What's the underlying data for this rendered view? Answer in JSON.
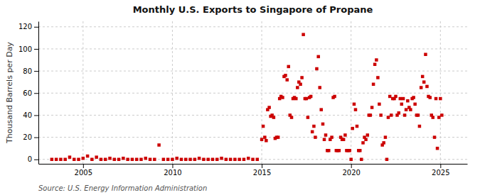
{
  "chart_data": {
    "type": "scatter",
    "title": "Monthly U.S. Exports to Singapore of Propane",
    "ylabel": "Thousand Barrels per Day",
    "source": "Source: U.S. Energy Information Administration",
    "color": "#cc0000",
    "marker": "square",
    "grid": true,
    "xlim": [
      2002.5,
      2026.5
    ],
    "ylim": [
      -4,
      125
    ],
    "xticks": [
      2005,
      2010,
      2015,
      2020,
      2025
    ],
    "yticks": [
      0,
      20,
      40,
      60,
      80,
      100,
      120
    ],
    "x": [
      2003.25,
      2003.5,
      2003.75,
      2004.0,
      2004.25,
      2004.5,
      2004.75,
      2005.0,
      2005.25,
      2005.5,
      2005.75,
      2006.0,
      2006.25,
      2006.5,
      2006.75,
      2007.0,
      2007.25,
      2007.5,
      2007.75,
      2008.0,
      2008.25,
      2008.5,
      2008.75,
      2009.0,
      2009.25,
      2009.5,
      2009.75,
      2010.0,
      2010.25,
      2010.5,
      2010.75,
      2011.0,
      2011.25,
      2011.5,
      2011.75,
      2012.0,
      2012.25,
      2012.5,
      2012.75,
      2013.0,
      2013.25,
      2013.5,
      2013.75,
      2014.0,
      2014.25,
      2014.5,
      2014.75,
      2015.0,
      2015.08,
      2015.17,
      2015.25,
      2015.33,
      2015.42,
      2015.5,
      2015.58,
      2015.67,
      2015.75,
      2015.83,
      2015.92,
      2016.0,
      2016.08,
      2016.17,
      2016.25,
      2016.33,
      2016.42,
      2016.5,
      2016.58,
      2016.67,
      2016.75,
      2016.83,
      2016.92,
      2017.0,
      2017.08,
      2017.17,
      2017.25,
      2017.33,
      2017.42,
      2017.5,
      2017.58,
      2017.67,
      2017.75,
      2017.83,
      2017.92,
      2018.0,
      2018.08,
      2018.17,
      2018.25,
      2018.33,
      2018.42,
      2018.5,
      2018.58,
      2018.67,
      2018.75,
      2018.83,
      2018.92,
      2019.0,
      2019.08,
      2019.17,
      2019.25,
      2019.33,
      2019.42,
      2019.5,
      2019.58,
      2019.67,
      2019.75,
      2019.83,
      2019.92,
      2020.0,
      2020.08,
      2020.17,
      2020.25,
      2020.33,
      2020.42,
      2020.5,
      2020.58,
      2020.67,
      2020.75,
      2020.83,
      2020.92,
      2021.0,
      2021.08,
      2021.17,
      2021.25,
      2021.33,
      2021.42,
      2021.5,
      2021.58,
      2021.67,
      2021.75,
      2021.83,
      2021.92,
      2022.0,
      2022.08,
      2022.17,
      2022.25,
      2022.33,
      2022.42,
      2022.5,
      2022.58,
      2022.67,
      2022.75,
      2022.83,
      2022.92,
      2023.0,
      2023.08,
      2023.17,
      2023.25,
      2023.33,
      2023.42,
      2023.5,
      2023.58,
      2023.67,
      2023.75,
      2023.83,
      2023.92,
      2024.0,
      2024.08,
      2024.17,
      2024.25,
      2024.33,
      2024.42,
      2024.5,
      2024.58,
      2024.67,
      2024.75,
      2024.83,
      2024.92,
      2025.0,
      2025.08
    ],
    "values": [
      0,
      0,
      0,
      0,
      2,
      0,
      0,
      1,
      3,
      0,
      2,
      0,
      0,
      1,
      0,
      0,
      1,
      0,
      0,
      0,
      0,
      1,
      0,
      0,
      13,
      0,
      0,
      0,
      1,
      0,
      0,
      0,
      0,
      1,
      0,
      0,
      0,
      0,
      1,
      0,
      0,
      0,
      0,
      0,
      1,
      0,
      0,
      18,
      30,
      20,
      17,
      45,
      47,
      39,
      40,
      38,
      19,
      20,
      20,
      55,
      57,
      56,
      75,
      76,
      72,
      84,
      40,
      38,
      55,
      56,
      55,
      65,
      70,
      68,
      74,
      113,
      55,
      55,
      38,
      56,
      57,
      25,
      30,
      20,
      82,
      93,
      65,
      45,
      32,
      18,
      22,
      8,
      8,
      18,
      20,
      56,
      57,
      8,
      8,
      8,
      20,
      18,
      18,
      22,
      8,
      8,
      8,
      0,
      28,
      50,
      45,
      30,
      8,
      8,
      0,
      15,
      20,
      18,
      22,
      40,
      40,
      47,
      68,
      86,
      90,
      74,
      50,
      40,
      13,
      15,
      20,
      0,
      38,
      57,
      40,
      55,
      55,
      57,
      40,
      42,
      55,
      50,
      55,
      40,
      45,
      53,
      47,
      45,
      55,
      56,
      50,
      40,
      40,
      30,
      65,
      75,
      70,
      95,
      66,
      57,
      56,
      40,
      38,
      20,
      55,
      10,
      38,
      55,
      40
    ]
  }
}
